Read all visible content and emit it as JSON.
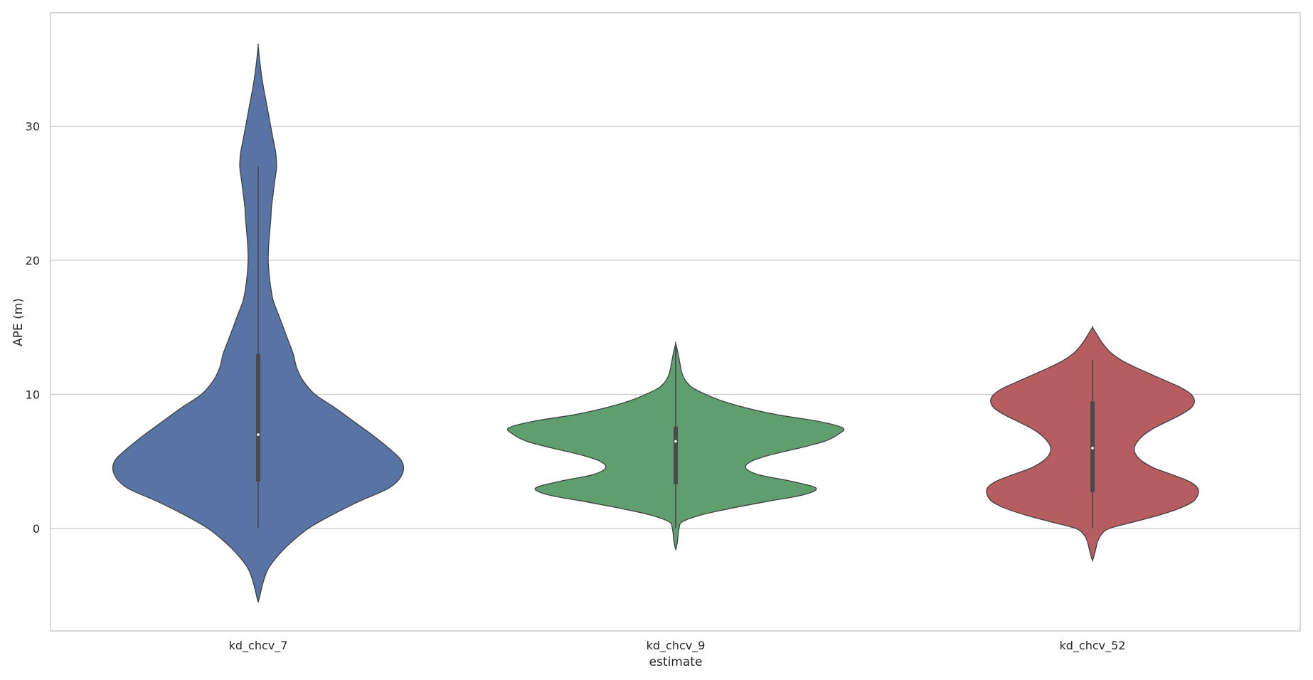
{
  "chart_data": {
    "type": "violin",
    "title": "",
    "xlabel": "estimate",
    "ylabel": "APE (m)",
    "ylim": [
      -7.5,
      38.2
    ],
    "y_ticks": [
      0,
      10,
      20,
      30
    ],
    "y_tick_labels": [
      "0",
      "10",
      "20",
      "30"
    ],
    "grid": "horizontal",
    "categories": [
      "kd_chcv_7",
      "kd_chcv_9",
      "kd_chcv_52"
    ],
    "series": [
      {
        "category": "kd_chcv_7",
        "color": "#5874a5",
        "box": {
          "whisker_low": 0.0,
          "q1": 3.5,
          "median": 7.0,
          "q3": 13.0,
          "whisker_high": 27.0
        },
        "density_profile": [
          [
            -5.5,
            0.0
          ],
          [
            -5.0,
            0.01
          ],
          [
            -4.0,
            0.03
          ],
          [
            -3.0,
            0.06
          ],
          [
            -2.0,
            0.12
          ],
          [
            -1.0,
            0.2
          ],
          [
            0.0,
            0.3
          ],
          [
            1.0,
            0.44
          ],
          [
            2.0,
            0.6
          ],
          [
            3.0,
            0.78
          ],
          [
            4.0,
            0.86
          ],
          [
            5.0,
            0.86
          ],
          [
            6.0,
            0.78
          ],
          [
            7.0,
            0.68
          ],
          [
            8.0,
            0.57
          ],
          [
            9.0,
            0.46
          ],
          [
            10.0,
            0.34
          ],
          [
            11.0,
            0.27
          ],
          [
            12.0,
            0.23
          ],
          [
            13.0,
            0.21
          ],
          [
            14.0,
            0.18
          ],
          [
            15.0,
            0.15
          ],
          [
            16.0,
            0.12
          ],
          [
            17.0,
            0.09
          ],
          [
            18.0,
            0.075
          ],
          [
            19.0,
            0.065
          ],
          [
            20.0,
            0.06
          ],
          [
            21.0,
            0.062
          ],
          [
            22.0,
            0.068
          ],
          [
            23.0,
            0.075
          ],
          [
            24.0,
            0.08
          ],
          [
            25.0,
            0.09
          ],
          [
            26.0,
            0.1
          ],
          [
            27.0,
            0.11
          ],
          [
            28.0,
            0.105
          ],
          [
            29.0,
            0.09
          ],
          [
            30.0,
            0.075
          ],
          [
            31.0,
            0.06
          ],
          [
            32.0,
            0.045
          ],
          [
            33.0,
            0.03
          ],
          [
            34.0,
            0.018
          ],
          [
            35.0,
            0.008
          ],
          [
            36.0,
            0.0
          ]
        ]
      },
      {
        "category": "kd_chcv_9",
        "color": "#5f9e6e",
        "box": {
          "whisker_low": 0.0,
          "q1": 3.3,
          "median": 6.5,
          "q3": 7.6,
          "whisker_high": 13.8
        },
        "density_profile": [
          [
            -1.6,
            0.0
          ],
          [
            -1.0,
            0.01
          ],
          [
            0.0,
            0.02
          ],
          [
            0.5,
            0.04
          ],
          [
            1.0,
            0.15
          ],
          [
            1.5,
            0.33
          ],
          [
            2.0,
            0.54
          ],
          [
            2.5,
            0.76
          ],
          [
            3.0,
            0.84
          ],
          [
            3.5,
            0.7
          ],
          [
            4.0,
            0.5
          ],
          [
            4.5,
            0.42
          ],
          [
            5.0,
            0.45
          ],
          [
            5.5,
            0.57
          ],
          [
            6.0,
            0.74
          ],
          [
            6.5,
            0.89
          ],
          [
            7.0,
            0.97
          ],
          [
            7.5,
            1.0
          ],
          [
            8.0,
            0.85
          ],
          [
            8.5,
            0.6
          ],
          [
            9.0,
            0.42
          ],
          [
            9.5,
            0.28
          ],
          [
            10.0,
            0.18
          ],
          [
            10.5,
            0.1
          ],
          [
            11.0,
            0.06
          ],
          [
            11.5,
            0.04
          ],
          [
            12.0,
            0.03
          ],
          [
            13.0,
            0.015
          ],
          [
            13.8,
            0.0
          ]
        ]
      },
      {
        "category": "kd_chcv_52",
        "color": "#b55d60",
        "box": {
          "whisker_low": 0.0,
          "q1": 2.7,
          "median": 6.0,
          "q3": 9.5,
          "whisker_high": 12.6
        },
        "density_profile": [
          [
            -2.4,
            0.0
          ],
          [
            -2.0,
            0.01
          ],
          [
            -1.5,
            0.02
          ],
          [
            -1.0,
            0.03
          ],
          [
            -0.5,
            0.05
          ],
          [
            0.0,
            0.1
          ],
          [
            0.5,
            0.25
          ],
          [
            1.0,
            0.4
          ],
          [
            1.5,
            0.52
          ],
          [
            2.0,
            0.6
          ],
          [
            2.5,
            0.63
          ],
          [
            3.0,
            0.63
          ],
          [
            3.5,
            0.58
          ],
          [
            4.0,
            0.48
          ],
          [
            4.5,
            0.37
          ],
          [
            5.0,
            0.3
          ],
          [
            5.5,
            0.26
          ],
          [
            6.0,
            0.25
          ],
          [
            6.5,
            0.27
          ],
          [
            7.0,
            0.31
          ],
          [
            7.5,
            0.37
          ],
          [
            8.0,
            0.45
          ],
          [
            8.5,
            0.53
          ],
          [
            9.0,
            0.59
          ],
          [
            9.5,
            0.61
          ],
          [
            10.0,
            0.59
          ],
          [
            10.5,
            0.53
          ],
          [
            11.0,
            0.44
          ],
          [
            11.5,
            0.35
          ],
          [
            12.0,
            0.26
          ],
          [
            12.5,
            0.18
          ],
          [
            13.0,
            0.12
          ],
          [
            13.5,
            0.08
          ],
          [
            14.0,
            0.05
          ],
          [
            14.5,
            0.025
          ],
          [
            15.0,
            0.0
          ]
        ]
      }
    ]
  }
}
